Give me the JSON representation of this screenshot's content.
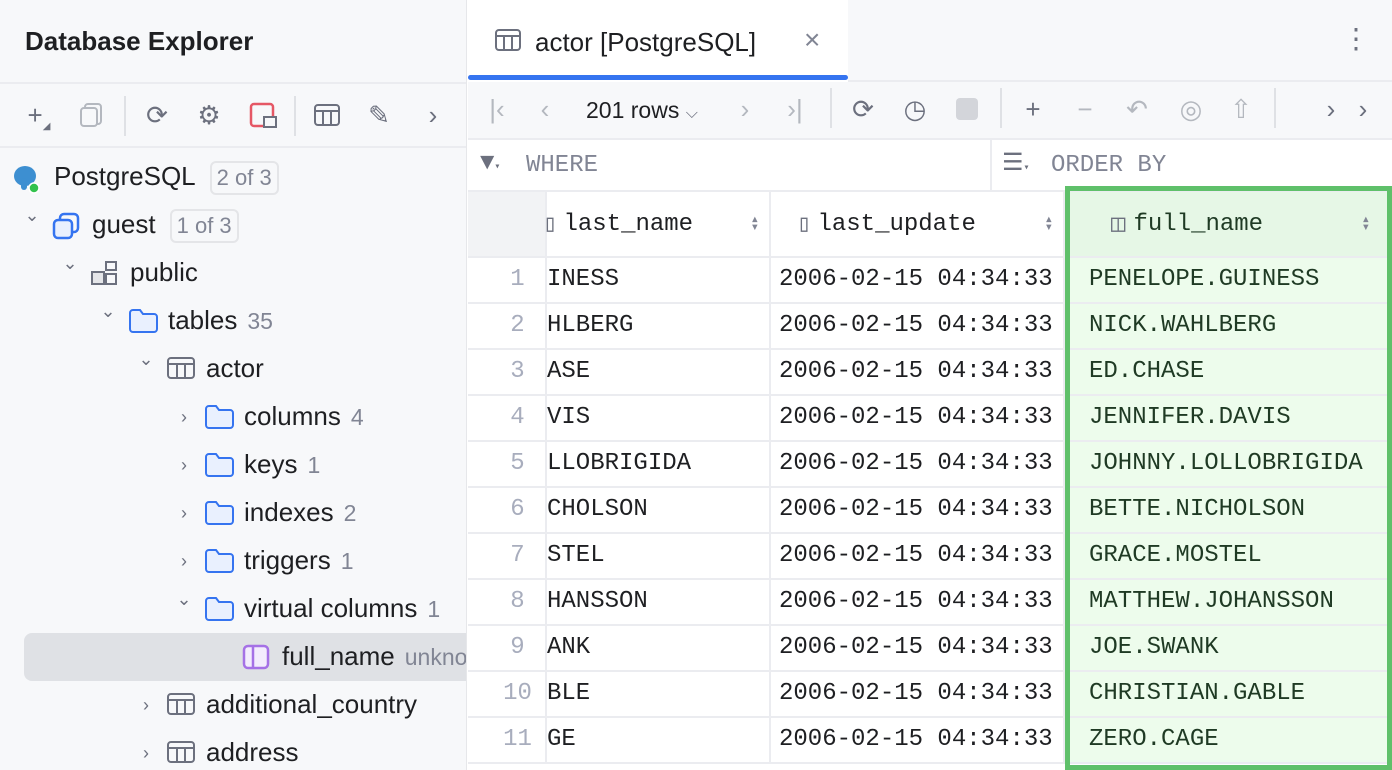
{
  "explorer": {
    "title": "Database Explorer",
    "toolbar": [
      "plus-icon",
      "copy-icon",
      "refresh-icon",
      "gear-icon",
      "disconnect-icon",
      "table-icon",
      "pencil-icon",
      "chevron-right-icon"
    ],
    "tree": [
      {
        "label": "PostgreSQL",
        "badge": "2 of 3",
        "icon": "postgresql-icon",
        "level": 0,
        "chev": ""
      },
      {
        "label": "guest",
        "badge": "1 of 3",
        "icon": "database-icon",
        "level": 1,
        "chev": "v"
      },
      {
        "label": "public",
        "icon": "schema-icon",
        "level": 2,
        "chev": "v"
      },
      {
        "label": "tables",
        "count": "35",
        "icon": "folder-icon",
        "level": 3,
        "chev": "v"
      },
      {
        "label": "actor",
        "icon": "table-icon",
        "level": 4,
        "chev": "v"
      },
      {
        "label": "columns",
        "count": "4",
        "icon": "folder-icon",
        "level": 5,
        "chev": ">"
      },
      {
        "label": "keys",
        "count": "1",
        "icon": "folder-icon",
        "level": 5,
        "chev": ">"
      },
      {
        "label": "indexes",
        "count": "2",
        "icon": "folder-icon",
        "level": 5,
        "chev": ">"
      },
      {
        "label": "triggers",
        "count": "1",
        "icon": "folder-icon",
        "level": 5,
        "chev": ">"
      },
      {
        "label": "virtual columns",
        "count": "1",
        "icon": "folder-icon",
        "level": 5,
        "chev": "v"
      },
      {
        "label": "full_name",
        "count": "unknown",
        "icon": "virtual-column-icon",
        "level": 6,
        "chev": "",
        "selected": true
      },
      {
        "label": "additional_country",
        "icon": "table-icon",
        "level": 4,
        "chev": ">"
      },
      {
        "label": "address",
        "icon": "table-icon",
        "level": 4,
        "chev": ">"
      }
    ]
  },
  "tab": {
    "label": "actor [PostgreSQL]",
    "close": "×",
    "more": "⋮"
  },
  "toolbar": {
    "rows_label": "201 rows"
  },
  "filter": {
    "where": "WHERE",
    "order_by": "ORDER BY"
  },
  "grid": {
    "columns": [
      "last_name",
      "last_update",
      "full_name"
    ],
    "rows": [
      [
        "1",
        "INESS",
        "2006-02-15 04:34:33",
        "PENELOPE.GUINESS"
      ],
      [
        "2",
        "HLBERG",
        "2006-02-15 04:34:33",
        "NICK.WAHLBERG"
      ],
      [
        "3",
        "ASE",
        "2006-02-15 04:34:33",
        "ED.CHASE"
      ],
      [
        "4",
        "VIS",
        "2006-02-15 04:34:33",
        "JENNIFER.DAVIS"
      ],
      [
        "5",
        "LLOBRIGIDA",
        "2006-02-15 04:34:33",
        "JOHNNY.LOLLOBRIGIDA"
      ],
      [
        "6",
        "CHOLSON",
        "2006-02-15 04:34:33",
        "BETTE.NICHOLSON"
      ],
      [
        "7",
        "STEL",
        "2006-02-15 04:34:33",
        "GRACE.MOSTEL"
      ],
      [
        "8",
        "HANSSON",
        "2006-02-15 04:34:33",
        "MATTHEW.JOHANSSON"
      ],
      [
        "9",
        "ANK",
        "2006-02-15 04:34:33",
        "JOE.SWANK"
      ],
      [
        "10",
        "BLE",
        "2006-02-15 04:34:33",
        "CHRISTIAN.GABLE"
      ],
      [
        "11",
        "GE",
        "2006-02-15 04:34:33",
        "ZERO.CAGE"
      ]
    ]
  },
  "colors": {
    "accent": "#3574f0",
    "highlight_border": "#5fc06a",
    "highlight_bg": "#edfcec",
    "disconnect": "#e55765",
    "virtual": "#a571e6"
  }
}
